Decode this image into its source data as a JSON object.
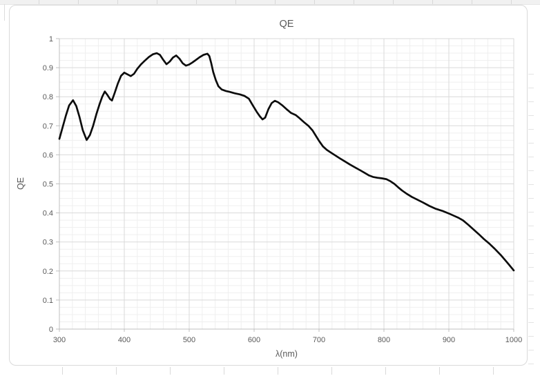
{
  "chart_data": {
    "type": "line",
    "title": "QE",
    "xlabel": "λ(nm)",
    "ylabel": "QE",
    "legend": "none",
    "grid": "major+minor",
    "axes": {
      "x": {
        "min": 300,
        "max": 1000,
        "major": 100,
        "minor": 20,
        "tick_labels": [
          "300",
          "400",
          "500",
          "600",
          "700",
          "800",
          "900",
          "1000"
        ],
        "tick_values": [
          300,
          400,
          500,
          600,
          700,
          800,
          900,
          1000
        ]
      },
      "y": {
        "min": 0,
        "max": 1,
        "major": 0.1,
        "minor": 0.025,
        "tick_labels": [
          "0",
          "0.1",
          "0.2",
          "0.3",
          "0.4",
          "0.5",
          "0.6",
          "0.7",
          "0.8",
          "0.9",
          "1"
        ],
        "tick_values": [
          0,
          0.1,
          0.2,
          0.3,
          0.4,
          0.5,
          0.6,
          0.7,
          0.8,
          0.9,
          1
        ]
      }
    },
    "series": [
      {
        "name": "QE",
        "x": [
          300,
          305,
          310,
          315,
          321,
          326,
          331,
          336,
          342,
          347,
          352,
          357,
          362,
          366,
          370,
          374,
          378,
          381,
          385,
          390,
          395,
          400,
          405,
          410,
          415,
          420,
          426,
          432,
          438,
          444,
          450,
          455,
          460,
          465,
          470,
          475,
          480,
          485,
          490,
          495,
          500,
          505,
          510,
          516,
          522,
          528,
          531,
          534,
          537,
          541,
          545,
          550,
          556,
          562,
          570,
          578,
          585,
          592,
          598,
          604,
          609,
          613,
          617,
          622,
          627,
          632,
          637,
          643,
          650,
          657,
          664,
          670,
          677,
          684,
          690,
          695,
          700,
          706,
          712,
          718,
          725,
          732,
          740,
          748,
          756,
          764,
          771,
          777,
          783,
          790,
          797,
          804,
          810,
          816,
          822,
          828,
          835,
          843,
          851,
          860,
          870,
          880,
          890,
          900,
          908,
          915,
          922,
          930,
          938,
          946,
          954,
          962,
          970,
          980,
          990,
          1000
        ],
        "y": [
          0.655,
          0.695,
          0.735,
          0.77,
          0.788,
          0.768,
          0.73,
          0.685,
          0.651,
          0.668,
          0.7,
          0.74,
          0.775,
          0.8,
          0.818,
          0.806,
          0.792,
          0.787,
          0.812,
          0.845,
          0.872,
          0.883,
          0.877,
          0.871,
          0.879,
          0.896,
          0.912,
          0.925,
          0.937,
          0.946,
          0.95,
          0.944,
          0.927,
          0.912,
          0.921,
          0.935,
          0.942,
          0.931,
          0.915,
          0.907,
          0.911,
          0.918,
          0.926,
          0.936,
          0.944,
          0.948,
          0.94,
          0.915,
          0.885,
          0.857,
          0.836,
          0.825,
          0.82,
          0.817,
          0.812,
          0.808,
          0.803,
          0.793,
          0.77,
          0.748,
          0.732,
          0.722,
          0.728,
          0.757,
          0.778,
          0.786,
          0.781,
          0.771,
          0.757,
          0.744,
          0.737,
          0.726,
          0.712,
          0.699,
          0.684,
          0.666,
          0.648,
          0.629,
          0.617,
          0.608,
          0.598,
          0.588,
          0.577,
          0.566,
          0.556,
          0.546,
          0.537,
          0.529,
          0.524,
          0.521,
          0.519,
          0.516,
          0.509,
          0.5,
          0.488,
          0.477,
          0.466,
          0.455,
          0.446,
          0.436,
          0.424,
          0.414,
          0.407,
          0.398,
          0.39,
          0.383,
          0.374,
          0.359,
          0.343,
          0.327,
          0.31,
          0.295,
          0.278,
          0.255,
          0.229,
          0.202
        ]
      }
    ],
    "colors": {
      "line": "#0d0d0d",
      "grid_major": "#d9d9d9",
      "grid_minor": "#efefef",
      "axis": "#bfbfbf",
      "text": "#595959",
      "frame_border": "#d9d9d9"
    }
  }
}
